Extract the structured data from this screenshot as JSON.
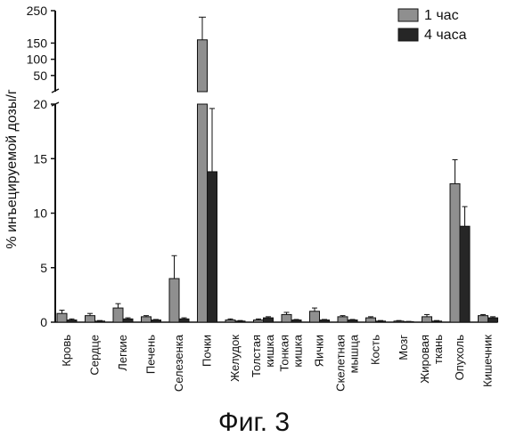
{
  "chart_data": {
    "type": "bar",
    "ylabel": "% инъецируемой дозы/г",
    "caption": "Фиг. 3",
    "legend_position": "top-right",
    "grid": false,
    "broken_y_axis": true,
    "ylim_lower": [
      0,
      20
    ],
    "ylim_upper": [
      0,
      250
    ],
    "yticks_lower": [
      "0",
      "5",
      "10",
      "15",
      "20"
    ],
    "yticks_upper": [
      "50",
      "100",
      "150",
      "250"
    ],
    "categories": [
      [
        "Кровь"
      ],
      [
        "Сердце"
      ],
      [
        "Легкие"
      ],
      [
        "Печень"
      ],
      [
        "Селезенка"
      ],
      [
        "Почки"
      ],
      [
        "Желудок"
      ],
      [
        "Толстая",
        "кишка"
      ],
      [
        "Тонкая",
        "кишка"
      ],
      [
        "Яички"
      ],
      [
        "Скелетная",
        "мышца"
      ],
      [
        "Кость"
      ],
      [
        "Мозг"
      ],
      [
        "Жировая",
        "ткань"
      ],
      [
        "Опухоль"
      ],
      [
        "Кишечник"
      ]
    ],
    "series": [
      {
        "name": "1 час",
        "color": "#8f8f8f",
        "values": [
          0.8,
          0.6,
          1.3,
          0.5,
          4.0,
          160,
          0.2,
          0.2,
          0.7,
          1.0,
          0.5,
          0.4,
          0.1,
          0.5,
          12.7,
          0.6
        ],
        "errors": [
          0.3,
          0.2,
          0.4,
          0.1,
          2.1,
          70,
          0.1,
          0.1,
          0.2,
          0.3,
          0.1,
          0.1,
          0.05,
          0.2,
          2.2,
          0.1
        ]
      },
      {
        "name": "4 часа",
        "color": "#262626",
        "values": [
          0.2,
          0.1,
          0.3,
          0.2,
          0.3,
          13.8,
          0.1,
          0.4,
          0.2,
          0.2,
          0.2,
          0.1,
          0.05,
          0.1,
          8.8,
          0.4
        ],
        "errors": [
          0.1,
          0.05,
          0.1,
          0.05,
          0.1,
          5.8,
          0.05,
          0.1,
          0.05,
          0.05,
          0.05,
          0.05,
          0.02,
          0.05,
          1.8,
          0.1
        ]
      }
    ]
  }
}
